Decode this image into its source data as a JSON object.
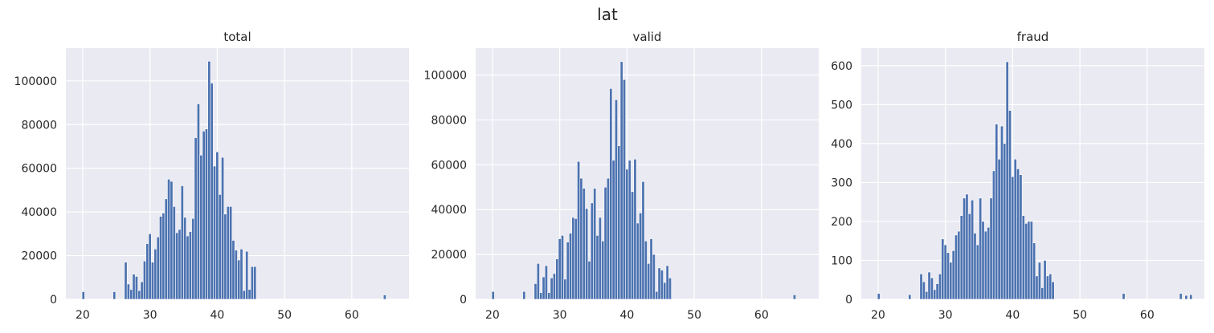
{
  "figure": {
    "suptitle": "lat"
  },
  "chart_data": [
    {
      "type": "bar",
      "title": "total",
      "xlim": [
        17.5,
        68.5
      ],
      "ylim": [
        0,
        115000
      ],
      "xticks": [
        20,
        30,
        40,
        50,
        60
      ],
      "yticks": [
        0,
        20000,
        40000,
        60000,
        80000,
        100000
      ],
      "grid": true,
      "bin_width": 0.4,
      "bars": [
        [
          20.1,
          3500
        ],
        [
          24.7,
          3500
        ],
        [
          26.4,
          17000
        ],
        [
          26.8,
          7000
        ],
        [
          27.2,
          4500
        ],
        [
          27.6,
          11500
        ],
        [
          28.0,
          10500
        ],
        [
          28.4,
          4000
        ],
        [
          28.8,
          8000
        ],
        [
          29.2,
          17500
        ],
        [
          29.6,
          25500
        ],
        [
          30.0,
          30000
        ],
        [
          30.4,
          17000
        ],
        [
          30.8,
          23000
        ],
        [
          31.2,
          28500
        ],
        [
          31.6,
          38000
        ],
        [
          32.0,
          39500
        ],
        [
          32.4,
          46000
        ],
        [
          32.8,
          55000
        ],
        [
          33.2,
          54000
        ],
        [
          33.6,
          42500
        ],
        [
          34.0,
          30500
        ],
        [
          34.4,
          32000
        ],
        [
          34.8,
          52000
        ],
        [
          35.2,
          37500
        ],
        [
          35.6,
          29000
        ],
        [
          36.0,
          31000
        ],
        [
          36.4,
          37000
        ],
        [
          36.8,
          74000
        ],
        [
          37.2,
          89500
        ],
        [
          37.6,
          66000
        ],
        [
          38.0,
          77000
        ],
        [
          38.4,
          78000
        ],
        [
          38.8,
          109000
        ],
        [
          39.2,
          99000
        ],
        [
          39.6,
          61000
        ],
        [
          40.0,
          67500
        ],
        [
          40.4,
          48000
        ],
        [
          40.8,
          65000
        ],
        [
          41.2,
          39000
        ],
        [
          41.6,
          42500
        ],
        [
          42.0,
          42500
        ],
        [
          42.4,
          27000
        ],
        [
          42.8,
          22500
        ],
        [
          43.2,
          18000
        ],
        [
          43.6,
          23000
        ],
        [
          44.0,
          4000
        ],
        [
          44.4,
          22000
        ],
        [
          44.8,
          4500
        ],
        [
          45.2,
          15000
        ],
        [
          45.6,
          15000
        ],
        [
          64.9,
          2000
        ]
      ]
    },
    {
      "type": "bar",
      "title": "valid",
      "xlim": [
        17.5,
        68.5
      ],
      "ylim": [
        0,
        112000
      ],
      "xticks": [
        20,
        30,
        40,
        50,
        60
      ],
      "yticks": [
        0,
        20000,
        40000,
        60000,
        80000,
        100000
      ],
      "grid": true,
      "bin_width": 0.4,
      "bars": [
        [
          20.1,
          3500
        ],
        [
          24.7,
          3500
        ],
        [
          26.4,
          7000
        ],
        [
          26.8,
          16000
        ],
        [
          27.2,
          3000
        ],
        [
          27.6,
          10000
        ],
        [
          28.0,
          15000
        ],
        [
          28.4,
          3000
        ],
        [
          28.8,
          9500
        ],
        [
          29.2,
          11500
        ],
        [
          29.6,
          18000
        ],
        [
          30.0,
          27000
        ],
        [
          30.4,
          28500
        ],
        [
          30.8,
          9000
        ],
        [
          31.2,
          25500
        ],
        [
          31.6,
          29500
        ],
        [
          32.0,
          36500
        ],
        [
          32.4,
          36000
        ],
        [
          32.8,
          61500
        ],
        [
          33.2,
          54000
        ],
        [
          33.6,
          49500
        ],
        [
          34.0,
          40500
        ],
        [
          34.4,
          17000
        ],
        [
          34.8,
          43000
        ],
        [
          35.2,
          49500
        ],
        [
          35.6,
          28500
        ],
        [
          36.0,
          36500
        ],
        [
          36.4,
          26000
        ],
        [
          36.8,
          50000
        ],
        [
          37.2,
          54000
        ],
        [
          37.6,
          94000
        ],
        [
          38.0,
          62000
        ],
        [
          38.4,
          89000
        ],
        [
          38.8,
          68500
        ],
        [
          39.2,
          106000
        ],
        [
          39.6,
          98000
        ],
        [
          40.0,
          58000
        ],
        [
          40.4,
          62000
        ],
        [
          40.8,
          48000
        ],
        [
          41.2,
          62500
        ],
        [
          41.6,
          34000
        ],
        [
          42.0,
          38500
        ],
        [
          42.4,
          52500
        ],
        [
          42.8,
          26000
        ],
        [
          43.2,
          16000
        ],
        [
          43.6,
          27000
        ],
        [
          44.0,
          20000
        ],
        [
          44.4,
          3500
        ],
        [
          44.8,
          14000
        ],
        [
          45.2,
          13000
        ],
        [
          45.6,
          7500
        ],
        [
          46.0,
          15000
        ],
        [
          46.4,
          9500
        ],
        [
          64.9,
          2000
        ]
      ]
    },
    {
      "type": "bar",
      "title": "fraud",
      "xlim": [
        17.5,
        68.5
      ],
      "ylim": [
        0,
        645
      ],
      "xticks": [
        20,
        30,
        40,
        50,
        60
      ],
      "yticks": [
        0,
        100,
        200,
        300,
        400,
        500,
        600
      ],
      "grid": true,
      "bin_width": 0.4,
      "bars": [
        [
          20.1,
          15
        ],
        [
          24.7,
          12
        ],
        [
          26.4,
          65
        ],
        [
          26.8,
          45
        ],
        [
          27.2,
          20
        ],
        [
          27.6,
          70
        ],
        [
          28.0,
          55
        ],
        [
          28.4,
          25
        ],
        [
          28.8,
          40
        ],
        [
          29.2,
          65
        ],
        [
          29.6,
          155
        ],
        [
          30.0,
          140
        ],
        [
          30.4,
          120
        ],
        [
          30.8,
          95
        ],
        [
          31.2,
          125
        ],
        [
          31.6,
          165
        ],
        [
          32.0,
          175
        ],
        [
          32.4,
          215
        ],
        [
          32.8,
          260
        ],
        [
          33.2,
          270
        ],
        [
          33.6,
          220
        ],
        [
          34.0,
          255
        ],
        [
          34.4,
          170
        ],
        [
          34.8,
          140
        ],
        [
          35.2,
          260
        ],
        [
          35.6,
          200
        ],
        [
          36.0,
          175
        ],
        [
          36.4,
          185
        ],
        [
          36.8,
          260
        ],
        [
          37.2,
          330
        ],
        [
          37.6,
          450
        ],
        [
          38.0,
          360
        ],
        [
          38.4,
          445
        ],
        [
          38.8,
          400
        ],
        [
          39.2,
          610
        ],
        [
          39.6,
          485
        ],
        [
          40.0,
          315
        ],
        [
          40.4,
          360
        ],
        [
          40.8,
          335
        ],
        [
          41.2,
          320
        ],
        [
          41.6,
          215
        ],
        [
          42.0,
          195
        ],
        [
          42.4,
          200
        ],
        [
          42.8,
          200
        ],
        [
          43.2,
          145
        ],
        [
          43.6,
          60
        ],
        [
          44.0,
          95
        ],
        [
          44.4,
          30
        ],
        [
          44.8,
          100
        ],
        [
          45.2,
          60
        ],
        [
          45.6,
          65
        ],
        [
          46.0,
          45
        ],
        [
          56.5,
          15
        ],
        [
          65.0,
          15
        ],
        [
          65.8,
          10
        ],
        [
          66.5,
          12
        ]
      ]
    }
  ]
}
